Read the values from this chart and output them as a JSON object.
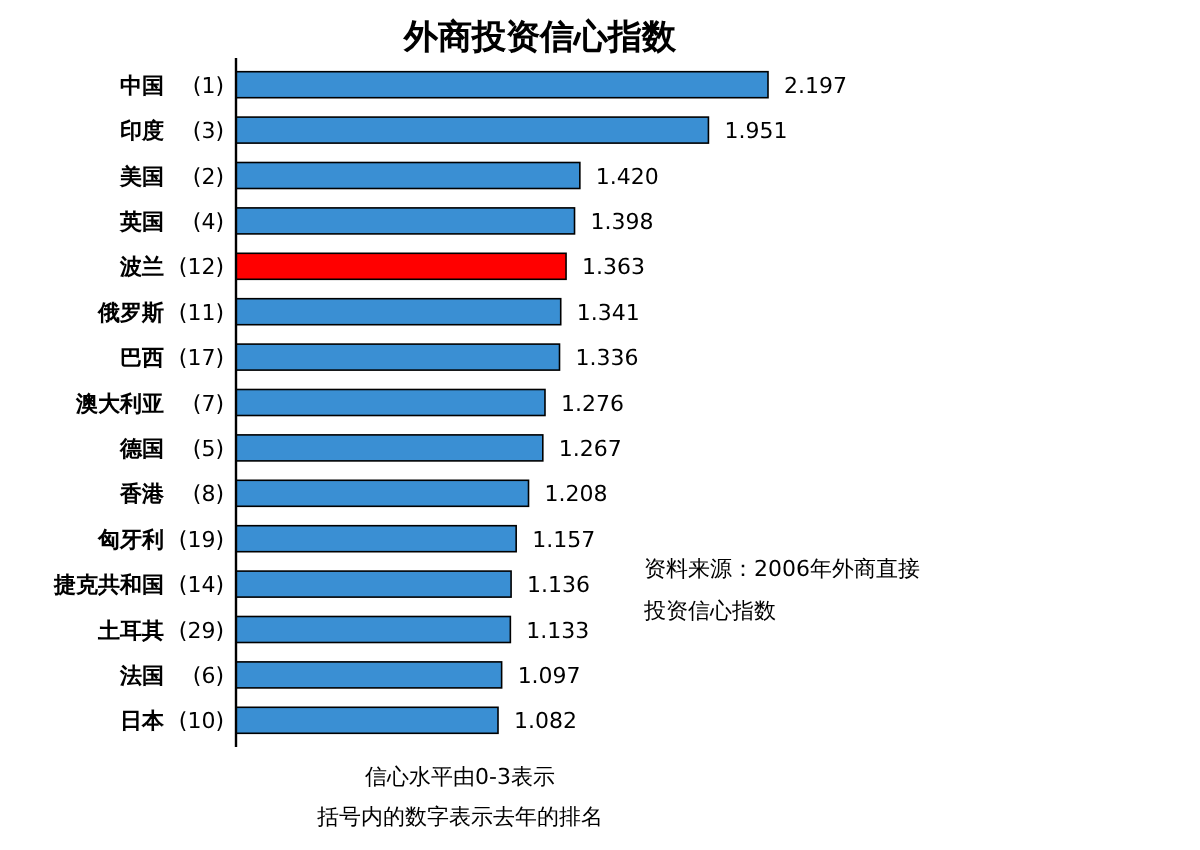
{
  "chart_data": {
    "type": "bar",
    "orientation": "horizontal",
    "title": "外商投资信心指数",
    "categories": [
      "中国 (1)",
      "印度 (3)",
      "美国 (2)",
      "英国 (4)",
      "波兰 (12)",
      "俄罗斯 (11)",
      "巴西 (17)",
      "澳大利亚 (7)",
      "德国 (5)",
      "香港 (8)",
      "匈牙利 (19)",
      "捷克共和国 (14)",
      "土耳其 (29)",
      "法国 (6)",
      "日本 (10)"
    ],
    "values": [
      2.197,
      1.951,
      1.42,
      1.398,
      1.363,
      1.341,
      1.336,
      1.276,
      1.267,
      1.208,
      1.157,
      1.136,
      1.133,
      1.097,
      1.082
    ],
    "value_labels": [
      "2.197",
      "1.951",
      "1.420",
      "1.398",
      "1.363",
      "1.341",
      "1.336",
      "1.276",
      "1.267",
      "1.208",
      "1.157",
      "1.136",
      "1.133",
      "1.097",
      "1.082"
    ],
    "colors": [
      "#3a8fd3",
      "#3a8fd3",
      "#3a8fd3",
      "#3a8fd3",
      "#ff0000",
      "#3a8fd3",
      "#3a8fd3",
      "#3a8fd3",
      "#3a8fd3",
      "#3a8fd3",
      "#3a8fd3",
      "#3a8fd3",
      "#3a8fd3",
      "#3a8fd3",
      "#3a8fd3"
    ],
    "annotations": [
      "资料来源：2006年外商直接投资信心指数",
      "信心水平由0-3表示",
      "括号内的数字表示去年的排名"
    ]
  }
}
